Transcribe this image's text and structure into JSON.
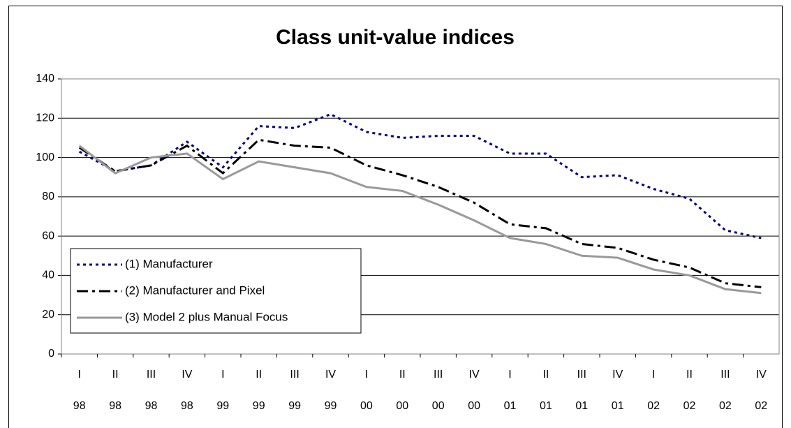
{
  "chart_data": {
    "type": "line",
    "title": "Class unit-value indices",
    "categories": [
      "I",
      "II",
      "III",
      "IV",
      "I",
      "II",
      "III",
      "IV",
      "I",
      "II",
      "III",
      "IV",
      "I",
      "II",
      "III",
      "IV",
      "I",
      "II",
      "III",
      "IV"
    ],
    "category_years": [
      "98",
      "98",
      "98",
      "98",
      "99",
      "99",
      "99",
      "99",
      "00",
      "00",
      "00",
      "00",
      "01",
      "01",
      "01",
      "01",
      "02",
      "02",
      "02",
      "02"
    ],
    "series": [
      {
        "name": "(1) Manufacturer",
        "color": "#000080",
        "dash": "dot",
        "values": [
          103,
          93,
          96,
          108,
          95,
          116,
          115,
          122,
          113,
          110,
          111,
          111,
          102,
          102,
          90,
          91,
          84,
          79,
          63,
          59
        ]
      },
      {
        "name": "(2) Manufacturer and Pixel",
        "color": "#000000",
        "dash": "dash-dot",
        "values": [
          105,
          93,
          96,
          106,
          92,
          109,
          106,
          105,
          96,
          91,
          85,
          77,
          66,
          64,
          56,
          54,
          48,
          44,
          36,
          34
        ]
      },
      {
        "name": "(3) Model 2 plus Manual Focus",
        "color": "#999999",
        "dash": "solid",
        "values": [
          106,
          92,
          100,
          102,
          89,
          98,
          95,
          92,
          85,
          83,
          76,
          68,
          59,
          56,
          50,
          49,
          43,
          40,
          33,
          31
        ]
      }
    ],
    "ylim": [
      0,
      140
    ],
    "yticks": [
      0,
      20,
      40,
      60,
      80,
      100,
      120,
      140
    ],
    "grid": true,
    "legend": "lower-left"
  }
}
